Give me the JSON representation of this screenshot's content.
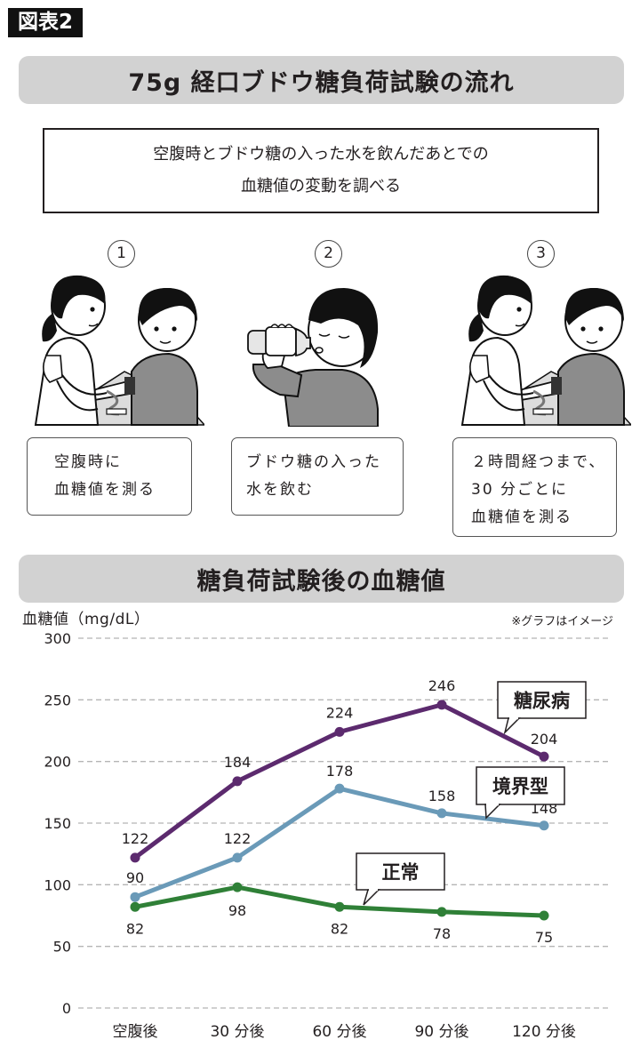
{
  "figure_label": "図表2",
  "section1": {
    "title": "75g 経口ブドウ糖負荷試験の流れ",
    "intro_lines": [
      "空腹時とブドウ糖の入った水を飲んだあとでの",
      "血糖値の変動を調べる"
    ],
    "steps": [
      {
        "number": "1",
        "illustration": "nurse-measuring-blood-sugar-illustration",
        "lines": [
          "空腹時に",
          "血糖値を測る"
        ]
      },
      {
        "number": "2",
        "illustration": "patient-drinking-glucose-water-illustration",
        "lines": [
          "ブドウ糖の入った",
          "水を飲む"
        ]
      },
      {
        "number": "3",
        "illustration": "nurse-measuring-blood-sugar-illustration",
        "lines": [
          "２時間経つまで、",
          "30 分ごとに",
          "血糖値を測る"
        ]
      }
    ]
  },
  "section2": {
    "title": "糖負荷試験後の血糖値",
    "y_axis_label": "血糖値（mg/dL）",
    "note": "※グラフはイメージ"
  },
  "chart_data": {
    "type": "line",
    "title": "糖負荷試験後の血糖値",
    "xlabel": "",
    "ylabel": "血糖値（mg/dL）",
    "categories": [
      "空腹後",
      "30 分後",
      "60 分後",
      "90 分後",
      "120 分後"
    ],
    "ylim": [
      0,
      300
    ],
    "yticks": [
      0,
      50,
      100,
      150,
      200,
      250,
      300
    ],
    "grid": "horizontal dashed",
    "legend": "callout labels",
    "annotations": [
      "※グラフはイメージ"
    ],
    "series": [
      {
        "name": "糖尿病",
        "color": "#5c2a6e",
        "values": [
          122,
          184,
          224,
          246,
          204
        ]
      },
      {
        "name": "境界型",
        "color": "#6a9ab8",
        "values": [
          90,
          122,
          178,
          158,
          148
        ]
      },
      {
        "name": "正常",
        "color": "#2f8037",
        "values": [
          82,
          98,
          82,
          78,
          75
        ]
      }
    ]
  }
}
